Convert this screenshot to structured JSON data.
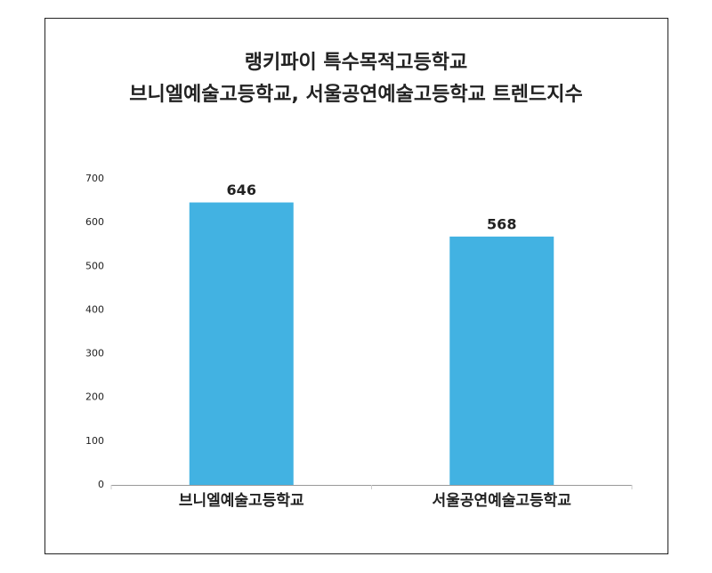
{
  "chart_data": {
    "type": "bar",
    "title": [
      "랭키파이 특수목적고등학교",
      "브니엘예술고등학교, 서울공연예술고등학교 트렌드지수"
    ],
    "categories": [
      "브니엘예술고등학교",
      "서울공연예술고등학교"
    ],
    "values": [
      646,
      568
    ],
    "color": "#42b2e2",
    "label_color": "#4aaed6",
    "ylim": [
      0,
      700
    ],
    "yticks": [
      0,
      100,
      200,
      300,
      400,
      500,
      600,
      700
    ],
    "grid": false
  }
}
